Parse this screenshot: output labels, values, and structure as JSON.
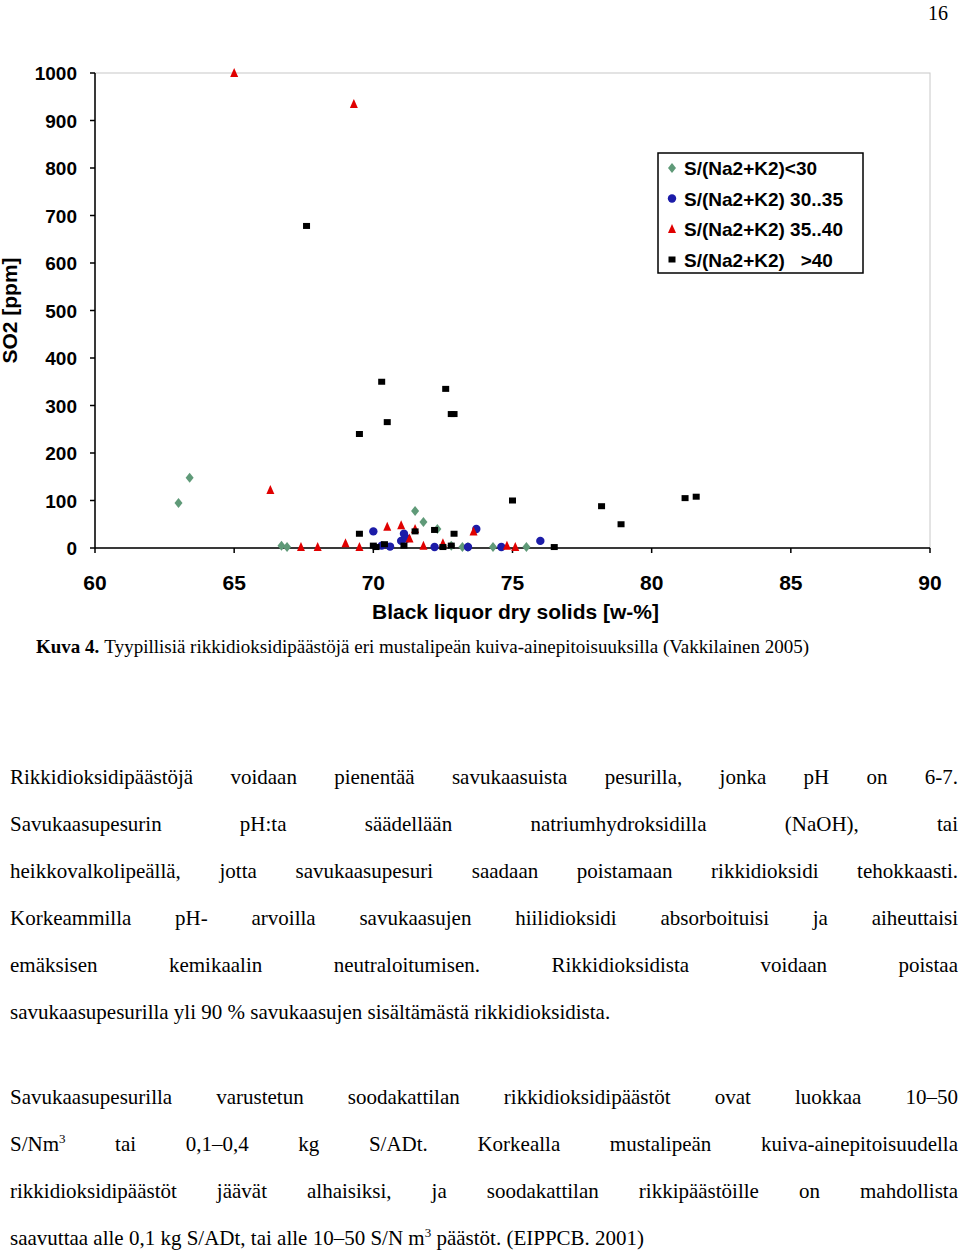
{
  "page_number": "16",
  "chart_data": {
    "type": "scatter",
    "x_label": "Black liquor dry solids [w-%]",
    "y_label": "SO2 [ppm]",
    "xlim": [
      60,
      90
    ],
    "ylim": [
      0,
      1000
    ],
    "xticks": [
      60,
      65,
      70,
      75,
      80,
      85,
      90
    ],
    "yticks": [
      0,
      100,
      200,
      300,
      400,
      500,
      600,
      700,
      800,
      900,
      1000
    ],
    "grid": false,
    "legend": "upper right",
    "series": [
      {
        "name": "S/(Na2+K2)<30",
        "color": "#5f9a78",
        "marker": "diamond",
        "x": [
          63,
          63.4,
          66.7,
          66.9,
          71.5,
          71.8,
          72.3,
          73.2,
          73.4,
          74.3,
          75.5,
          71.2,
          72.8
        ],
        "values": [
          95,
          148,
          5,
          2,
          78,
          55,
          40,
          2,
          2,
          2,
          2,
          20,
          5
        ]
      },
      {
        "name": "S/(Na2+K2) 30..35",
        "color": "#1c1ca8",
        "marker": "circle",
        "x": [
          70.0,
          70.3,
          71.0,
          71.1,
          71.2,
          72.2,
          73.4,
          73.7,
          74.6,
          76.0,
          70.6
        ],
        "values": [
          35,
          5,
          15,
          30,
          20,
          2,
          2,
          40,
          2,
          15,
          3
        ]
      },
      {
        "name": "S/(Na2+K2) 35..40",
        "color": "#e00000",
        "marker": "triangle",
        "x": [
          65,
          69.3,
          66.3,
          67.4,
          68.0,
          69.0,
          69.5,
          70.5,
          71.0,
          71.5,
          71.8,
          72.5,
          73.6,
          74.8,
          75.1,
          71.3
        ],
        "values": [
          1000,
          935,
          122,
          2,
          2,
          10,
          2,
          45,
          48,
          40,
          5,
          10,
          35,
          5,
          2,
          20
        ]
      },
      {
        "name": "S/(Na2+K2)   >40",
        "color": "#000000",
        "marker": "square",
        "x": [
          67.6,
          69.5,
          70.3,
          70.5,
          72.6,
          72.8,
          72.9,
          69.5,
          70.0,
          70.4,
          71.5,
          72.2,
          72.9,
          75.0,
          78.2,
          78.9,
          81.2,
          81.6,
          76.5,
          70.1,
          71.1,
          72.8,
          72.5
        ],
        "values": [
          678,
          240,
          350,
          265,
          335,
          282,
          282,
          30,
          5,
          8,
          35,
          38,
          30,
          100,
          88,
          50,
          105,
          108,
          2,
          2,
          5,
          5,
          2
        ]
      }
    ]
  },
  "caption": {
    "label": "Kuva 4.",
    "text": "Tyypillisiä rikkidioksidipäästöjä eri mustalipeän kuiva-ainepitoisuuksilla (Vakkilainen 2005)"
  },
  "paragraphs": [
    {
      "lines": [
        [
          {
            "text": "Rikkidioksidipäästöjä voidaan pienentää savukaasuista pesurilla, jonka pH on 6-7."
          }
        ],
        [
          {
            "text": "Savukaasupesurin pH:ta säädellään natriumhydroksidilla (NaOH), tai"
          }
        ],
        [
          {
            "text": "heikkovalkolipeällä, jotta savukaasupesuri saadaan poistamaan rikkidioksidi tehokkaasti."
          }
        ],
        [
          {
            "text": "Korkeammilla pH- arvoilla savukaasujen hiilidioksidi absorboituisi ja aiheuttaisi"
          }
        ],
        [
          {
            "text": "emäksisen kemikaalin neutraloitumisen. Rikkidioksidista voidaan poistaa"
          }
        ],
        [
          {
            "text": "savukaasupesurilla yli 90 % savukaasujen sisältämästä rikkidioksidista."
          }
        ]
      ]
    },
    {
      "lines": [
        [
          {
            "text": "Savukaasupesurilla varustetun soodakattilan rikkidioksidipäästöt ovat luokkaa 10–50"
          }
        ],
        [
          {
            "text": "S/Nm"
          },
          {
            "sup": "3"
          },
          {
            "text": " tai 0,1–0,4 kg S/ADt. Korkealla mustalipeän kuiva-ainepitoisuudella"
          }
        ],
        [
          {
            "text": "rikkidioksidipäästöt jäävät alhaisiksi, ja soodakattilan rikkipäästöille on mahdollista"
          }
        ],
        [
          {
            "text": "saavuttaa alle 0,1 kg S/ADt, tai alle 10–50 S/N m"
          },
          {
            "sup": "3"
          },
          {
            "text": " päästöt. (EIPPCB. 2001)"
          }
        ]
      ]
    }
  ]
}
